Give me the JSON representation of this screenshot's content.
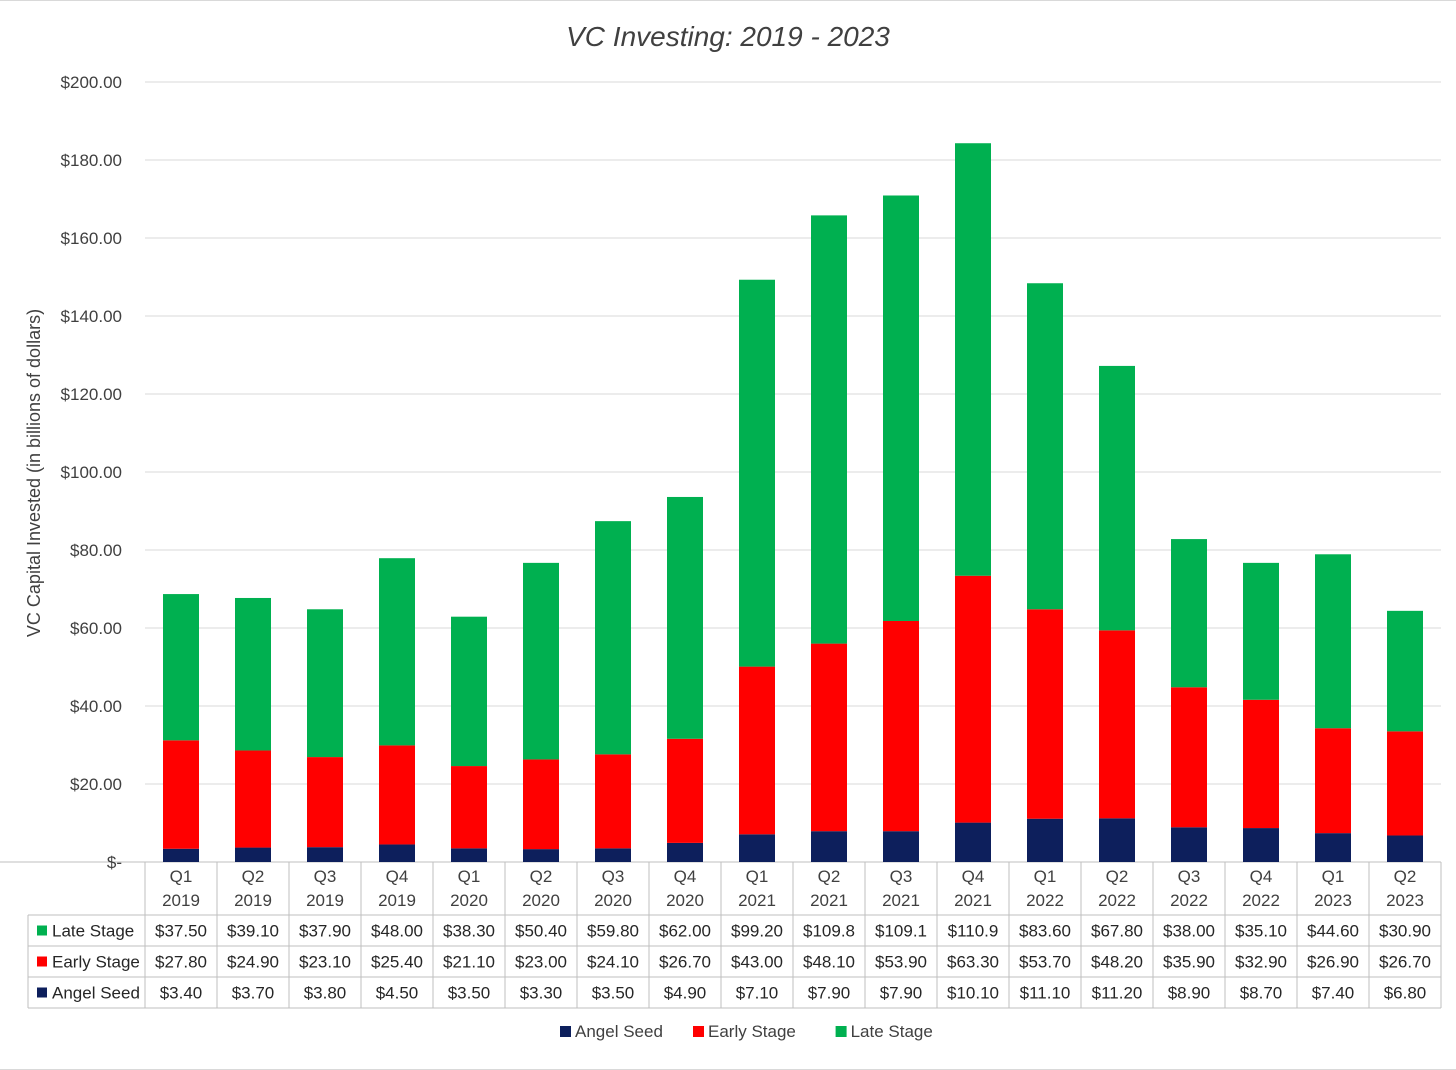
{
  "chart_data": {
    "type": "bar",
    "stacked": true,
    "title": "VC Investing: 2019 - 2023",
    "xlabel": "",
    "ylabel": "VC Capital  Invested (in billions of dollars)",
    "ylim": [
      0,
      200
    ],
    "y_ticks": [
      "$-",
      "$20.00",
      "$40.00",
      "$60.00",
      "$80.00",
      "$100.00",
      "$120.00",
      "$140.00",
      "$160.00",
      "$180.00",
      "$200.00"
    ],
    "y_tick_values": [
      0,
      20,
      40,
      60,
      80,
      100,
      120,
      140,
      160,
      180,
      200
    ],
    "grid": true,
    "legend_position": "bottom",
    "categories": [
      {
        "quarter": "Q1",
        "year": "2019"
      },
      {
        "quarter": "Q2",
        "year": "2019"
      },
      {
        "quarter": "Q3",
        "year": "2019"
      },
      {
        "quarter": "Q4",
        "year": "2019"
      },
      {
        "quarter": "Q1",
        "year": "2020"
      },
      {
        "quarter": "Q2",
        "year": "2020"
      },
      {
        "quarter": "Q3",
        "year": "2020"
      },
      {
        "quarter": "Q4",
        "year": "2020"
      },
      {
        "quarter": "Q1",
        "year": "2021"
      },
      {
        "quarter": "Q2",
        "year": "2021"
      },
      {
        "quarter": "Q3",
        "year": "2021"
      },
      {
        "quarter": "Q4",
        "year": "2021"
      },
      {
        "quarter": "Q1",
        "year": "2022"
      },
      {
        "quarter": "Q2",
        "year": "2022"
      },
      {
        "quarter": "Q3",
        "year": "2022"
      },
      {
        "quarter": "Q4",
        "year": "2022"
      },
      {
        "quarter": "Q1",
        "year": "2023"
      },
      {
        "quarter": "Q2",
        "year": "2023"
      }
    ],
    "series": [
      {
        "name": "Angel Seed",
        "color": "#0d1f5c",
        "values": [
          3.4,
          3.7,
          3.8,
          4.5,
          3.5,
          3.3,
          3.5,
          4.9,
          7.1,
          7.9,
          7.9,
          10.1,
          11.1,
          11.2,
          8.9,
          8.7,
          7.4,
          6.8
        ],
        "labels": [
          "$3.40",
          "$3.70",
          "$3.80",
          "$4.50",
          "$3.50",
          "$3.30",
          "$3.50",
          "$4.90",
          "$7.10",
          "$7.90",
          "$7.90",
          "$10.10",
          "$11.10",
          "$11.20",
          "$8.90",
          "$8.70",
          "$7.40",
          "$6.80"
        ]
      },
      {
        "name": "Early Stage",
        "color": "#ff0000",
        "values": [
          27.8,
          24.9,
          23.1,
          25.4,
          21.1,
          23.0,
          24.1,
          26.7,
          43.0,
          48.1,
          53.9,
          63.3,
          53.7,
          48.2,
          35.9,
          32.9,
          26.9,
          26.7
        ],
        "labels": [
          "$27.80",
          "$24.90",
          "$23.10",
          "$25.40",
          "$21.10",
          "$23.00",
          "$24.10",
          "$26.70",
          "$43.00",
          "$48.10",
          "$53.90",
          "$63.30",
          "$53.70",
          "$48.20",
          "$35.90",
          "$32.90",
          "$26.90",
          "$26.70"
        ]
      },
      {
        "name": "Late Stage",
        "color": "#00b050",
        "values": [
          37.5,
          39.1,
          37.9,
          48.0,
          38.3,
          50.4,
          59.8,
          62.0,
          99.2,
          109.8,
          109.1,
          110.9,
          83.6,
          67.8,
          38.0,
          35.1,
          44.6,
          30.9
        ],
        "labels": [
          "$37.50",
          "$39.10",
          "$37.90",
          "$48.00",
          "$38.30",
          "$50.40",
          "$59.80",
          "$62.00",
          "$99.20",
          "$109.8",
          "$109.1",
          "$110.9",
          "$83.60",
          "$67.80",
          "$38.00",
          "$35.10",
          "$44.60",
          "$30.90"
        ]
      }
    ],
    "table_row_order": [
      2,
      1,
      0
    ],
    "legend_order": [
      0,
      1,
      2
    ]
  }
}
